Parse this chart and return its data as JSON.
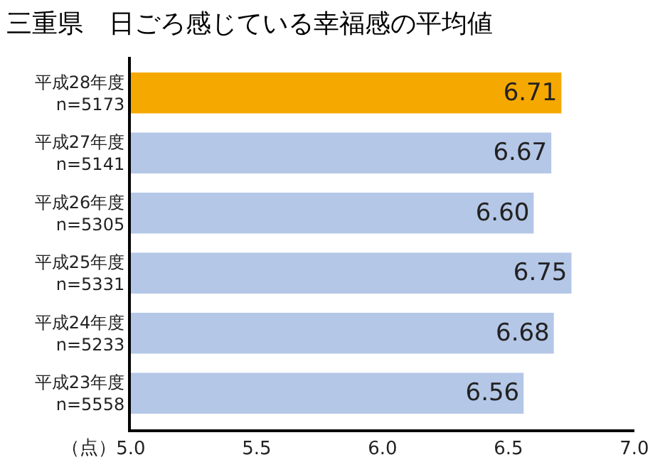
{
  "chart_data": {
    "type": "bar",
    "orientation": "horizontal",
    "title": "三重県　日ごろ感じている幸福感の平均値",
    "xlabel": "（点）",
    "categories": [
      "平成28年度\nn=5173",
      "平成27年度\nn=5141",
      "平成26年度\nn=5305",
      "平成25年度\nn=5331",
      "平成24年度\nn=5233",
      "平成23年度\nn=5558"
    ],
    "values": [
      6.71,
      6.67,
      6.6,
      6.75,
      6.68,
      6.56
    ],
    "value_labels": [
      "6.71",
      "6.67",
      "6.60",
      "6.75",
      "6.68",
      "6.56"
    ],
    "colors": [
      "#f5a800",
      "#b4c7e7",
      "#b4c7e7",
      "#b4c7e7",
      "#b4c7e7",
      "#b4c7e7"
    ],
    "xlim": [
      5.0,
      7.0
    ],
    "xticks": [
      {
        "value": 5,
        "label": "5.0"
      },
      {
        "value": 5.5,
        "label": "5.5"
      },
      {
        "value": 6,
        "label": "6.0"
      },
      {
        "value": 6.5,
        "label": "6.5"
      },
      {
        "value": 7,
        "label": "7.0"
      }
    ]
  }
}
